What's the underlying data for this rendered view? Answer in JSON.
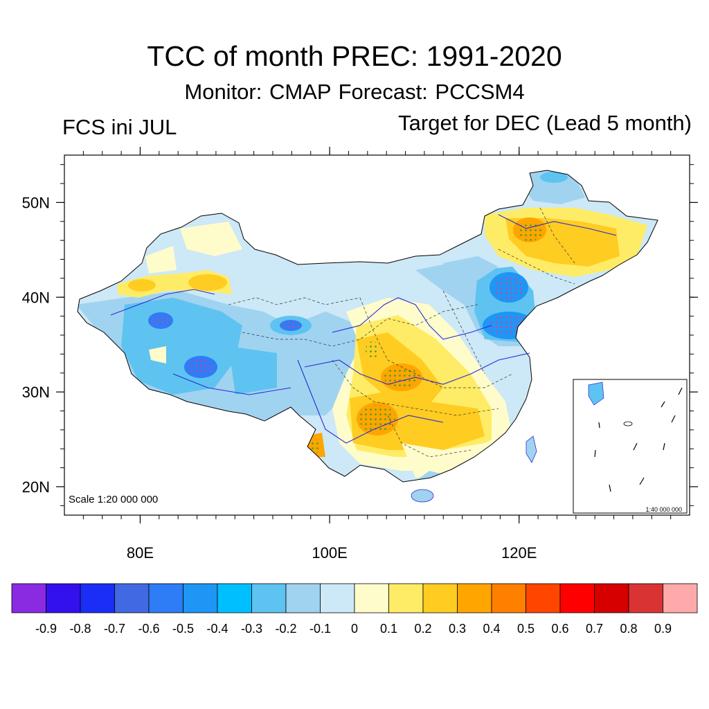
{
  "title": "TCC of month PREC: 1991-2020",
  "subtitle": "Monitor: CMAP   Forecast: PCCSM4",
  "left_label": "FCS ini JUL",
  "right_label": "Target for DEC (Lead 5 month)",
  "scale_main": "Scale 1:20 000 000",
  "scale_inset": "1:40 000 000",
  "map_extent": {
    "lon": [
      72,
      138
    ],
    "lat": [
      17,
      55
    ]
  },
  "lat_ticks": [
    {
      "lat": 50,
      "label": "50N"
    },
    {
      "lat": 40,
      "label": "40N"
    },
    {
      "lat": 30,
      "label": "30N"
    },
    {
      "lat": 20,
      "label": "20N"
    }
  ],
  "lon_ticks": [
    {
      "lon": 80,
      "label": "80E"
    },
    {
      "lon": 100,
      "label": "100E"
    },
    {
      "lon": 120,
      "label": "120E"
    }
  ],
  "colorbar": {
    "colors": [
      "#8a2be2",
      "#3311ee",
      "#1a2ef5",
      "#4169e1",
      "#2e7cf6",
      "#1e96f5",
      "#00bfff",
      "#5ec3f0",
      "#a0d3f0",
      "#cde8f6",
      "#fffccc",
      "#ffec66",
      "#ffcc22",
      "#ffa500",
      "#ff7f00",
      "#ff4500",
      "#ff0000",
      "#d60000",
      "#d93333",
      "#ffaaaa"
    ],
    "labels": [
      "-0.9",
      "-0.8",
      "-0.7",
      "-0.6",
      "-0.5",
      "-0.4",
      "-0.3",
      "-0.2",
      "-0.1",
      "0",
      "0.1",
      "0.2",
      "0.3",
      "0.4",
      "0.5",
      "0.6",
      "0.7",
      "0.8",
      "0.9"
    ]
  },
  "significance_dot_color": "#2ca02c"
}
